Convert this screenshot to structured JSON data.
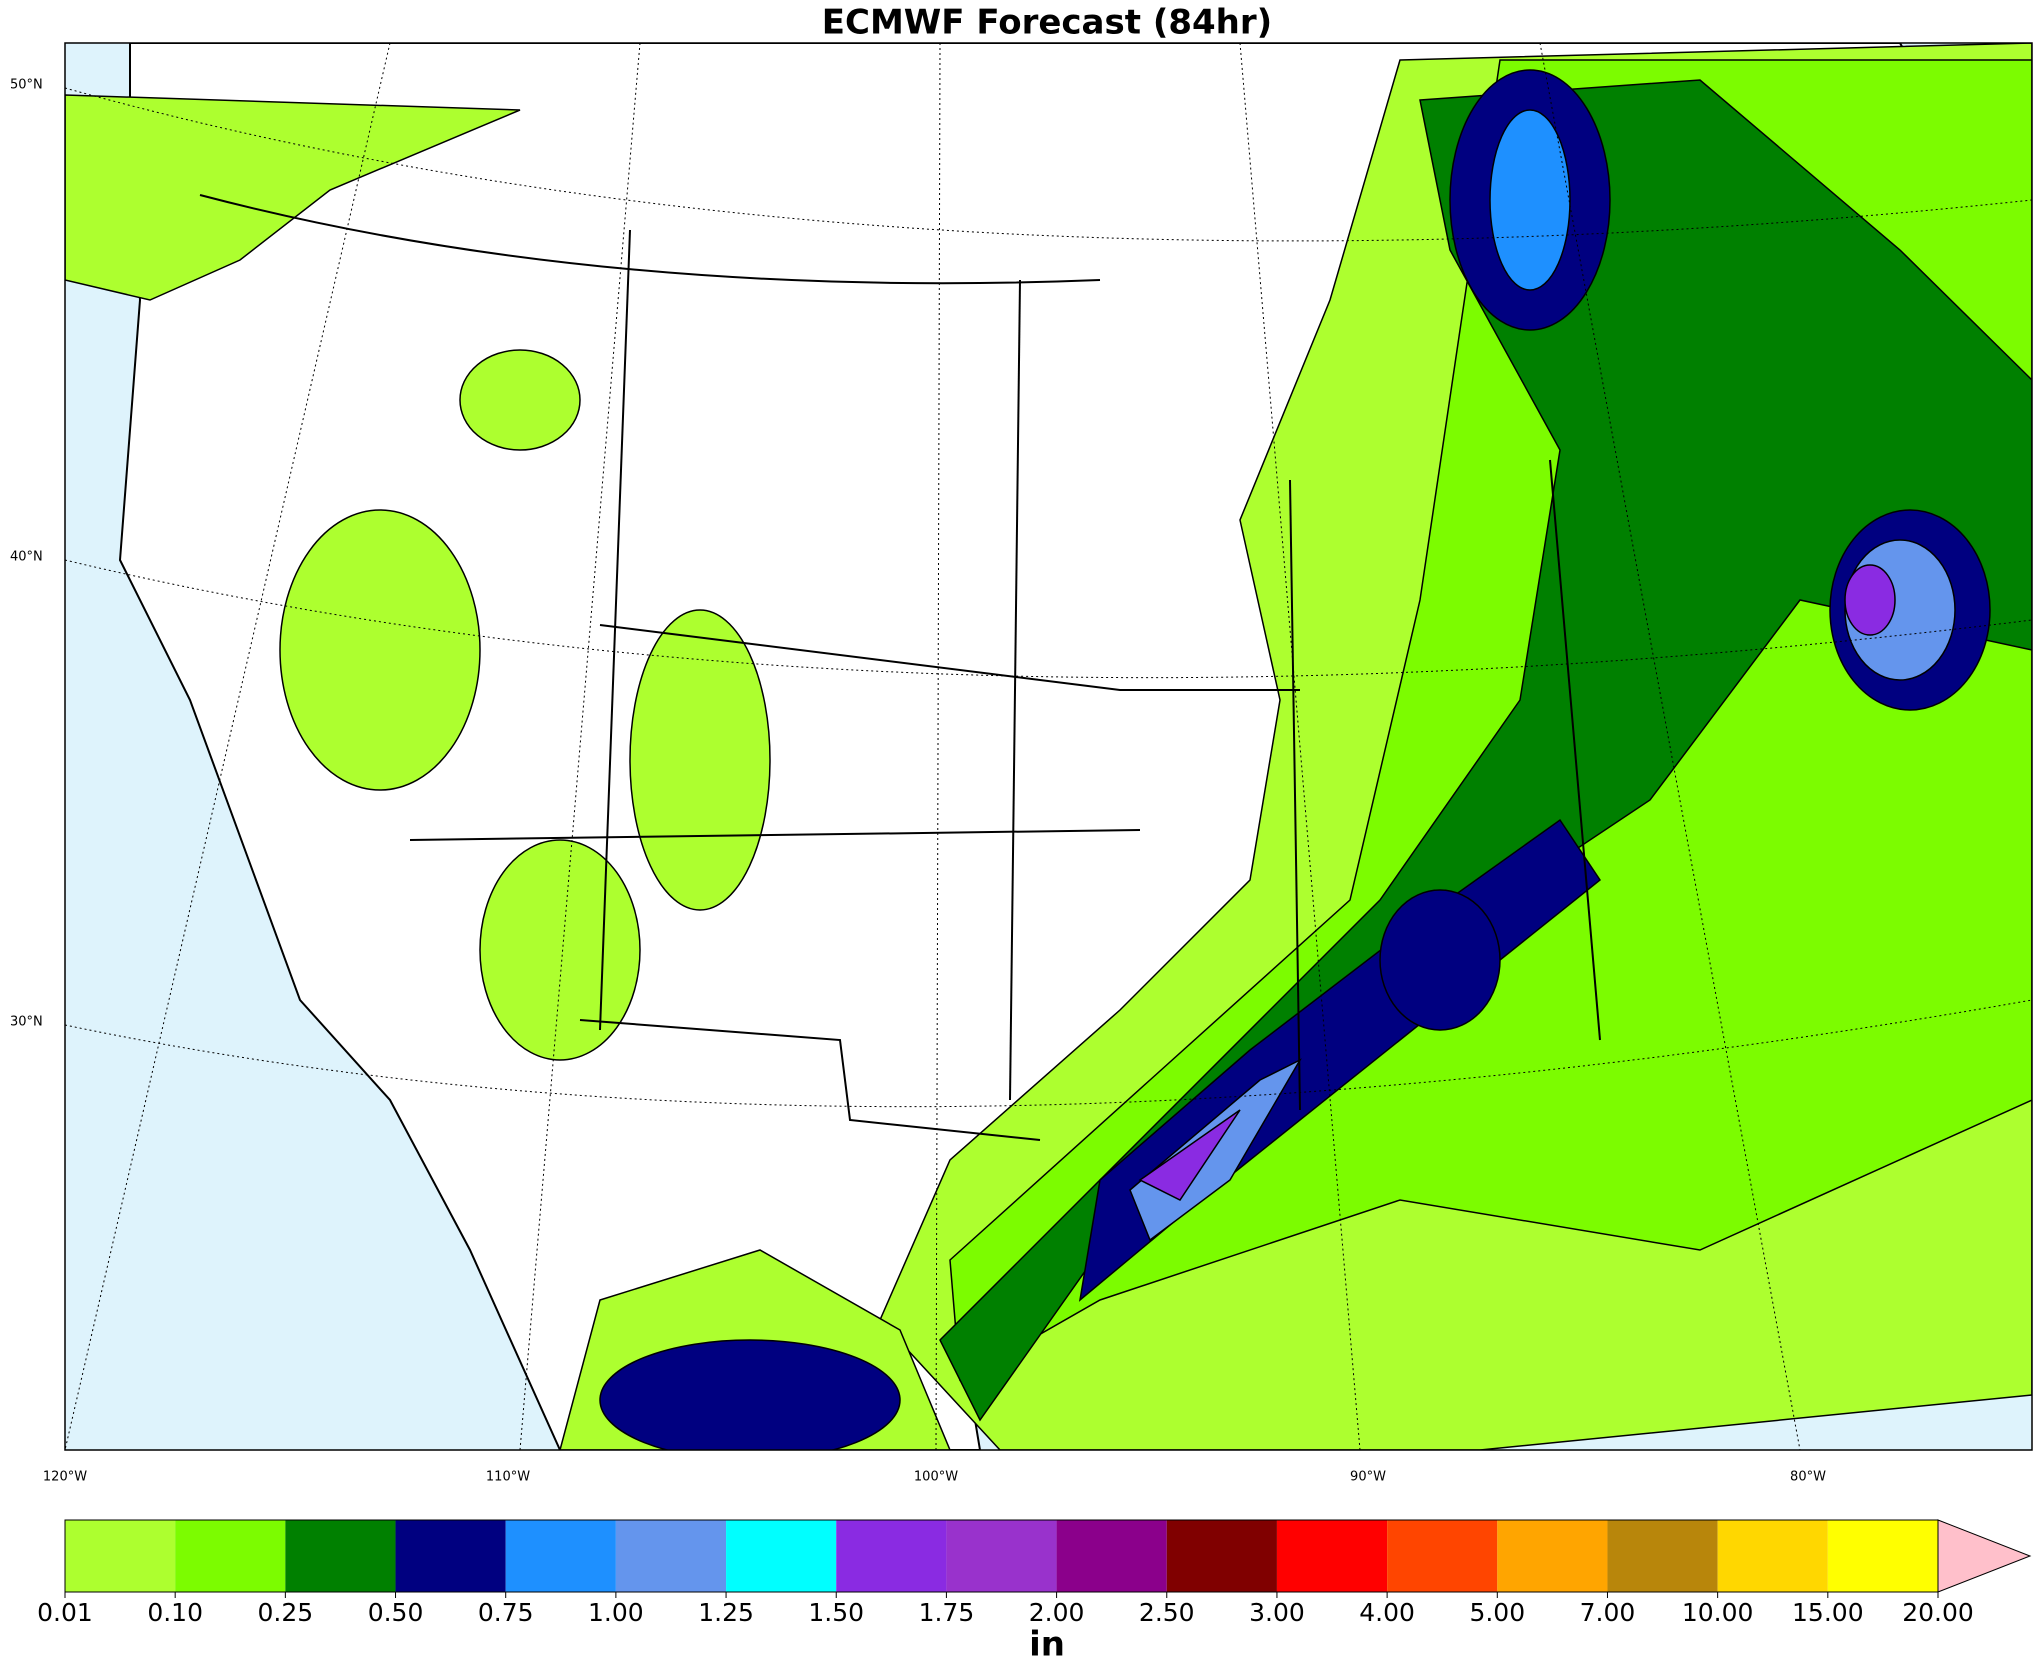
{
  "map": {
    "title": "ECMWF Forecast (84hr)",
    "lat_labels": [
      "50°N",
      "40°N",
      "30°N"
    ],
    "lon_labels": [
      "120°W",
      "110°W",
      "100°W",
      "90°W",
      "80°W"
    ],
    "colorbar": {
      "levels": [
        {
          "value": 0.01,
          "label": "0.01"
        },
        {
          "value": 0.1,
          "label": "0.10"
        },
        {
          "value": 0.25,
          "label": "0.25"
        },
        {
          "value": 0.5,
          "label": "0.50"
        },
        {
          "value": 0.75,
          "label": "0.75"
        },
        {
          "value": 1,
          "label": "1.00"
        },
        {
          "value": 1.25,
          "label": "1.25"
        },
        {
          "value": 1.5,
          "label": "1.50"
        },
        {
          "value": 1.75,
          "label": "1.75"
        },
        {
          "value": 2,
          "label": "2.00"
        },
        {
          "value": 2.5,
          "label": "2.50"
        },
        {
          "value": 3,
          "label": "3.00"
        },
        {
          "value": 4,
          "label": "4.00"
        },
        {
          "value": 5,
          "label": "5.00"
        },
        {
          "value": 7,
          "label": "7.00"
        },
        {
          "value": 10,
          "label": "10.00"
        },
        {
          "value": 15,
          "label": "15.00"
        },
        {
          "value": 20,
          "label": "20.00"
        }
      ],
      "colors": [
        "#adff2f",
        "#7cfc00",
        "#008000",
        "#000080",
        "#1e90ff",
        "#6495ed",
        "#00ffff",
        "#8a2be2",
        "#9932cc",
        "#8b008b",
        "#800000",
        "#ff0000",
        "#ff4500",
        "#ffa500",
        "#b8860b",
        "#ffd700",
        "#ffff00"
      ],
      "extend_color": "#ffc0cb",
      "unit": "in"
    }
  }
}
